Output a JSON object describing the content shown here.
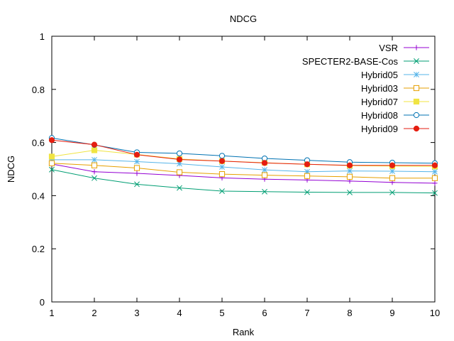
{
  "chart_data": {
    "type": "line",
    "title": "NDCG",
    "xlabel": "Rank",
    "ylabel": "NDCG",
    "xlim": [
      1,
      10
    ],
    "ylim": [
      0,
      1
    ],
    "grid": false,
    "legend_position": "top-right",
    "x": [
      1,
      2,
      3,
      4,
      5,
      6,
      7,
      8,
      9,
      10
    ],
    "x_ticks": [
      "1",
      "2",
      "3",
      "4",
      "5",
      "6",
      "7",
      "8",
      "9",
      "10"
    ],
    "y_tick_values": [
      0,
      0.2,
      0.4,
      0.6,
      0.8,
      1
    ],
    "y_ticks": [
      "0",
      "0.2",
      "0.4",
      "0.6",
      "0.8",
      "1"
    ],
    "series": [
      {
        "name": "VSR",
        "color": "#9400d3",
        "marker": "plus",
        "values": [
          0.519,
          0.49,
          0.484,
          0.476,
          0.467,
          0.462,
          0.459,
          0.455,
          0.45,
          0.447
        ]
      },
      {
        "name": "SPECTER2-BASE-Cos",
        "color": "#009e73",
        "marker": "cross",
        "values": [
          0.498,
          0.466,
          0.443,
          0.429,
          0.417,
          0.415,
          0.413,
          0.412,
          0.412,
          0.41
        ]
      },
      {
        "name": "Hybrid05",
        "color": "#56b4e9",
        "marker": "star",
        "values": [
          0.535,
          0.535,
          0.528,
          0.52,
          0.508,
          0.497,
          0.49,
          0.493,
          0.492,
          0.49
        ]
      },
      {
        "name": "Hybrid03",
        "color": "#e69f00",
        "marker": "square-open",
        "values": [
          0.522,
          0.514,
          0.504,
          0.488,
          0.481,
          0.477,
          0.474,
          0.471,
          0.466,
          0.466
        ]
      },
      {
        "name": "Hybrid07",
        "color": "#f0e442",
        "marker": "square-filled",
        "values": [
          0.547,
          0.571,
          0.555,
          0.538,
          0.53,
          0.524,
          0.518,
          0.513,
          0.511,
          0.51
        ]
      },
      {
        "name": "Hybrid08",
        "color": "#0072b2",
        "marker": "circle-open",
        "values": [
          0.617,
          0.591,
          0.563,
          0.559,
          0.55,
          0.54,
          0.533,
          0.526,
          0.524,
          0.522
        ]
      },
      {
        "name": "Hybrid09",
        "color": "#e51e10",
        "marker": "circle-filled",
        "values": [
          0.609,
          0.592,
          0.554,
          0.536,
          0.53,
          0.523,
          0.518,
          0.514,
          0.514,
          0.514
        ]
      }
    ]
  }
}
